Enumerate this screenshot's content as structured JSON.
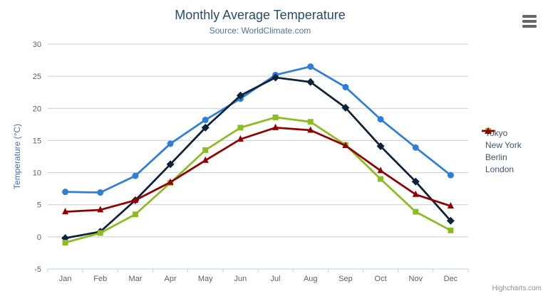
{
  "header": {
    "title": "Monthly Average Temperature",
    "subtitle": "Source: WorldClimate.com"
  },
  "export_menu": {
    "icon": "hamburger-menu-icon"
  },
  "credits": {
    "label": "Highcharts.com"
  },
  "legend": {
    "position": "right",
    "items": [
      "Tokyo",
      "New York",
      "Berlin",
      "London"
    ]
  },
  "axes": {
    "y_title": "Temperature (°C)",
    "y_ticks": [
      "-5",
      "0",
      "5",
      "10",
      "15",
      "20",
      "25",
      "30"
    ],
    "x_labels": [
      "Jan",
      "Feb",
      "Mar",
      "Apr",
      "May",
      "Jun",
      "Jul",
      "Aug",
      "Sep",
      "Oct",
      "Nov",
      "Dec"
    ]
  },
  "chart_data": {
    "type": "line",
    "title": "Monthly Average Temperature",
    "subtitle": "Source: WorldClimate.com",
    "categories": [
      "Jan",
      "Feb",
      "Mar",
      "Apr",
      "May",
      "Jun",
      "Jul",
      "Aug",
      "Sep",
      "Oct",
      "Nov",
      "Dec"
    ],
    "xlabel": "",
    "ylabel": "Temperature (°C)",
    "ylim": [
      -5,
      30
    ],
    "ytick_step": 5,
    "grid": "horizontal",
    "legend_position": "right",
    "series": [
      {
        "name": "Tokyo",
        "color": "#2f7ed8",
        "marker": "circle",
        "values": [
          7.0,
          6.9,
          9.5,
          14.5,
          18.2,
          21.5,
          25.2,
          26.5,
          23.3,
          18.3,
          13.9,
          9.6
        ]
      },
      {
        "name": "New York",
        "color": "#0d233a",
        "marker": "diamond",
        "values": [
          -0.2,
          0.8,
          5.7,
          11.3,
          17.0,
          22.0,
          24.8,
          24.1,
          20.1,
          14.1,
          8.6,
          2.5
        ]
      },
      {
        "name": "Berlin",
        "color": "#8bbc21",
        "marker": "square",
        "values": [
          -0.9,
          0.6,
          3.5,
          8.4,
          13.5,
          17.0,
          18.6,
          17.9,
          14.3,
          9.0,
          3.9,
          1.0
        ]
      },
      {
        "name": "London",
        "color": "#910000",
        "marker": "triangle",
        "values": [
          3.9,
          4.2,
          5.7,
          8.5,
          11.9,
          15.2,
          17.0,
          16.6,
          14.2,
          10.3,
          6.6,
          4.8
        ]
      }
    ]
  },
  "style_colors": {
    "gridline": "#cccccc",
    "axis_line": "#c0d0e0",
    "tick_label": "#606060",
    "axis_title": "#4572a7"
  }
}
